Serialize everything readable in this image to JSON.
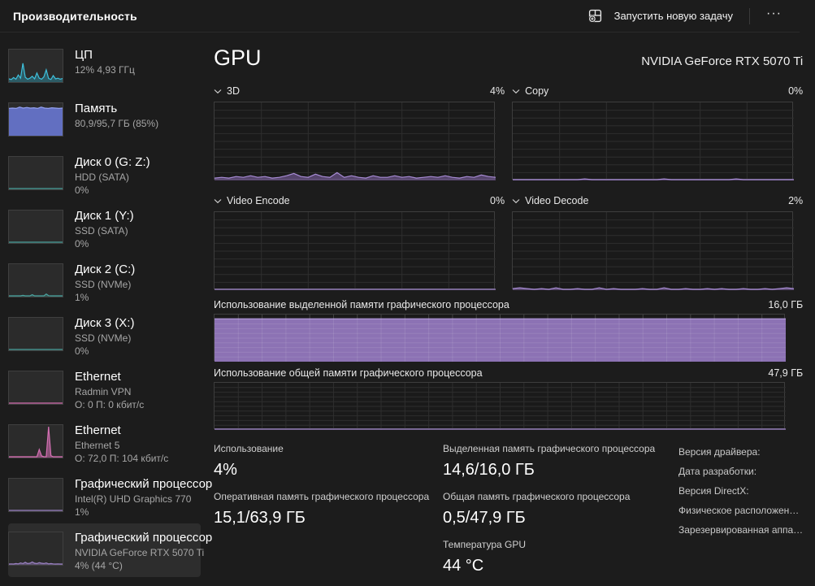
{
  "titlebar": {
    "title": "Производительность",
    "run_task_label": "Запустить новую задачу",
    "more_label": "···"
  },
  "sidebar": {
    "items": [
      {
        "title": "ЦП",
        "lines": [
          "12%  4,93 ГГц"
        ],
        "chart": {
          "color": "#3ec1dd",
          "fill": "rgba(47,165,190,0.40)",
          "series": [
            10,
            8,
            14,
            9,
            22,
            12,
            58,
            15,
            9,
            12,
            18,
            10,
            28,
            12,
            9,
            16,
            38,
            11,
            8,
            20,
            10,
            12,
            9,
            11
          ]
        }
      },
      {
        "title": "Память",
        "lines": [
          "80,9/95,7 ГБ (85%)"
        ],
        "chart": {
          "color": "#93a0ef",
          "fill": "rgba(101,115,201,0.95)",
          "series": [
            84,
            85,
            84,
            88,
            85,
            87,
            85,
            86,
            84,
            88,
            85,
            84,
            86,
            85,
            84,
            85
          ]
        }
      },
      {
        "title": "Диск 0 (G: Z:)",
        "lines": [
          "HDD (SATA)",
          "0%"
        ],
        "chart": {
          "color": "#4aa39e",
          "fill": "none",
          "series": [
            1,
            1
          ]
        }
      },
      {
        "title": "Диск 1 (Y:)",
        "lines": [
          "SSD (SATA)",
          "0%"
        ],
        "chart": {
          "color": "#4aa39e",
          "fill": "none",
          "series": [
            1,
            1
          ]
        }
      },
      {
        "title": "Диск 2 (C:)",
        "lines": [
          "SSD (NVMe)",
          "1%"
        ],
        "chart": {
          "color": "#4aa39e",
          "fill": "rgba(74,163,158,0.35)",
          "series": [
            0,
            1,
            0,
            2,
            0,
            1,
            4,
            1,
            0,
            2,
            6,
            1,
            0,
            1,
            2,
            0,
            8,
            3,
            0,
            1,
            0,
            2,
            1,
            0
          ]
        }
      },
      {
        "title": "Диск 3 (X:)",
        "lines": [
          "SSD (NVMe)",
          "0%"
        ],
        "chart": {
          "color": "#4aa39e",
          "fill": "none",
          "series": [
            1,
            1
          ]
        }
      },
      {
        "title": "Ethernet",
        "lines": [
          "Radmin VPN",
          "О: 0 П: 0 кбит/с"
        ],
        "chart": {
          "color": "#d570b4",
          "fill": "none",
          "series": [
            1,
            1
          ]
        }
      },
      {
        "title": "Ethernet",
        "lines": [
          "Ethernet 5",
          "О: 72,0 П: 104 кбит/с"
        ],
        "chart": {
          "color": "#d570b4",
          "fill": "rgba(213,112,180,0.55)",
          "series": [
            1,
            1,
            1,
            1,
            1,
            1,
            1,
            1,
            1,
            1,
            1,
            2,
            1,
            25,
            5,
            1,
            1,
            95,
            6,
            1,
            1,
            1,
            1,
            1
          ]
        }
      },
      {
        "title": "Графический процессор",
        "lines": [
          "Intel(R) UHD Graphics 770",
          "1%"
        ],
        "chart": {
          "color": "#9d83c6",
          "fill": "none",
          "series": [
            2,
            2
          ]
        }
      },
      {
        "title": "Графический процессор",
        "lines": [
          "NVIDIA GeForce RTX 5070 Ti",
          "4%  (44 °C)"
        ],
        "selected": true,
        "chart": {
          "color": "#9d83c6",
          "fill": "rgba(157,131,198,0.45)",
          "series": [
            2,
            3,
            2,
            4,
            3,
            6,
            4,
            8,
            4,
            5,
            9,
            5,
            4,
            7,
            5,
            4,
            6,
            3,
            4,
            3,
            2,
            3,
            2,
            2
          ]
        }
      }
    ]
  },
  "gpu": {
    "title": "GPU",
    "device": "NVIDIA GeForce RTX 5070 Ti",
    "engine_charts": [
      {
        "label": "3D",
        "value": "4%",
        "chart": {
          "rows": 10,
          "cols": 6,
          "color": "#a78bd4",
          "fill": "rgba(134,104,175,0.55)",
          "series": [
            3,
            4,
            3,
            5,
            4,
            6,
            4,
            5,
            3,
            4,
            6,
            9,
            5,
            4,
            8,
            5,
            4,
            10,
            4,
            6,
            4,
            3,
            6,
            4,
            4,
            6,
            4,
            5,
            3,
            4,
            5,
            4,
            6,
            4,
            3,
            5,
            4,
            7,
            5,
            4
          ]
        }
      },
      {
        "label": "Copy",
        "value": "0%",
        "chart": {
          "rows": 10,
          "cols": 6,
          "color": "#a78bd4",
          "fill": "rgba(134,104,175,0.55)",
          "series": [
            0,
            0,
            0,
            0,
            0,
            1,
            0,
            0,
            0,
            0,
            2,
            0,
            0,
            0,
            1,
            0,
            0,
            1,
            0,
            0,
            0,
            2,
            0,
            0,
            1,
            0,
            0,
            0,
            1,
            0,
            0,
            2,
            0,
            0,
            0,
            1,
            0,
            0,
            0,
            0
          ]
        }
      },
      {
        "label": "Video Encode",
        "value": "0%",
        "chart": {
          "rows": 10,
          "cols": 6,
          "color": "#a78bd4",
          "fill": "none",
          "series": [
            0,
            0
          ]
        }
      },
      {
        "label": "Video Decode",
        "value": "2%",
        "chart": {
          "rows": 10,
          "cols": 6,
          "color": "#a78bd4",
          "fill": "rgba(134,104,175,0.55)",
          "series": [
            2,
            3,
            2,
            1,
            2,
            1,
            3,
            1,
            1,
            2,
            1,
            1,
            3,
            1,
            2,
            1,
            1,
            1,
            2,
            1,
            1,
            3,
            1,
            1,
            2,
            1,
            1,
            2,
            1,
            2,
            1,
            1,
            2,
            1,
            1,
            2,
            1,
            2,
            3,
            2
          ]
        }
      }
    ],
    "memory_charts": [
      {
        "label": "Использование выделенной памяти графического процессора",
        "value": "16,0 ГБ",
        "chart": {
          "rows": 10,
          "cols": 24,
          "color": "#ab90d6",
          "fill": "#8c72b4",
          "overlay_grid": true,
          "series": [
            91,
            91
          ]
        }
      },
      {
        "label": "Использование общей памяти графического процессора",
        "value": "47,9 ГБ",
        "chart": {
          "rows": 10,
          "cols": 24,
          "color": "#a78bd4",
          "fill": "none",
          "series": [
            1,
            1
          ]
        }
      }
    ],
    "stats": {
      "usage": {
        "label": "Использование",
        "value": "4%"
      },
      "ram": {
        "label": "Оперативная память графического процессора",
        "value": "15,1/63,9 ГБ"
      },
      "dedicated": {
        "label": "Выделенная память графического процессора",
        "value": "14,6/16,0 ГБ"
      },
      "shared": {
        "label": "Общая память графического процессора",
        "value": "0,5/47,9 ГБ"
      },
      "temp": {
        "label": "Температура GPU",
        "value": "44 °C"
      }
    },
    "details": [
      "Версия драйвера:",
      "Дата разработки:",
      "Версия DirectX:",
      "Физическое расположен…",
      "Зарезервированная аппа…"
    ]
  }
}
